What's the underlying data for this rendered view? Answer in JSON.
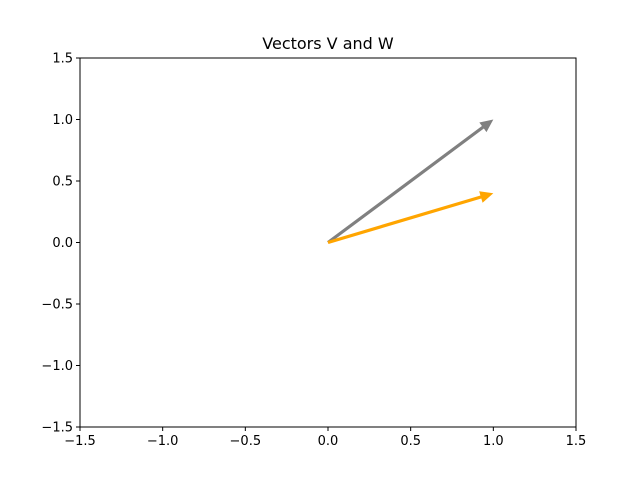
{
  "chart_data": {
    "type": "quiver",
    "title": "Vectors V and W",
    "xlabel": "",
    "ylabel": "",
    "xlim": [
      -1.5,
      1.5
    ],
    "ylim": [
      -1.5,
      1.5
    ],
    "xticks": [
      -1.5,
      -1.0,
      -0.5,
      0.0,
      0.5,
      1.0,
      1.5
    ],
    "yticks": [
      -1.5,
      -1.0,
      -0.5,
      0.0,
      0.5,
      1.0,
      1.5
    ],
    "xtick_labels": [
      "−1.5",
      "−1.0",
      "−0.5",
      "0.0",
      "0.5",
      "1.0",
      "1.5"
    ],
    "ytick_labels": [
      "−1.5",
      "−1.0",
      "−0.5",
      "0.0",
      "0.5",
      "1.0",
      "1.5"
    ],
    "grid": false,
    "legend": "none",
    "vectors": [
      {
        "origin": [
          0,
          0
        ],
        "components": [
          1.0,
          1.0
        ],
        "color": "#808080"
      },
      {
        "origin": [
          0,
          0
        ],
        "components": [
          1.0,
          0.4
        ],
        "color": "#FFA500"
      }
    ]
  }
}
